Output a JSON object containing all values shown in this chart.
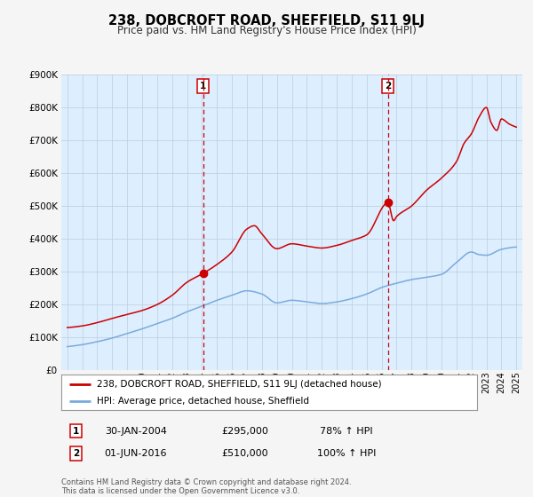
{
  "title": "238, DOBCROFT ROAD, SHEFFIELD, S11 9LJ",
  "subtitle": "Price paid vs. HM Land Registry's House Price Index (HPI)",
  "legend_line1": "238, DOBCROFT ROAD, SHEFFIELD, S11 9LJ (detached house)",
  "legend_line2": "HPI: Average price, detached house, Sheffield",
  "footer_line1": "Contains HM Land Registry data © Crown copyright and database right 2024.",
  "footer_line2": "This data is licensed under the Open Government Licence v3.0.",
  "annotation1_date": "30-JAN-2004",
  "annotation1_price": "£295,000",
  "annotation1_hpi": "78% ↑ HPI",
  "annotation2_date": "01-JUN-2016",
  "annotation2_price": "£510,000",
  "annotation2_hpi": "100% ↑ HPI",
  "sale1_x": 2004.08,
  "sale1_y": 295000,
  "sale2_x": 2016.42,
  "sale2_y": 510000,
  "vline1_x": 2004.08,
  "vline2_x": 2016.42,
  "red_line_color": "#cc0000",
  "blue_line_color": "#7aaadd",
  "fig_bg_color": "#f5f5f5",
  "plot_bg_color": "#ddeeff",
  "ylim": [
    0,
    900000
  ],
  "xlim_left": 1994.6,
  "xlim_right": 2025.4,
  "yticks": [
    0,
    100000,
    200000,
    300000,
    400000,
    500000,
    600000,
    700000,
    800000,
    900000
  ],
  "ytick_labels": [
    "£0",
    "£100K",
    "£200K",
    "£300K",
    "£400K",
    "£500K",
    "£600K",
    "£700K",
    "£800K",
    "£900K"
  ],
  "xticks": [
    1995,
    1996,
    1997,
    1998,
    1999,
    2000,
    2001,
    2002,
    2003,
    2004,
    2005,
    2006,
    2007,
    2008,
    2009,
    2010,
    2011,
    2012,
    2013,
    2014,
    2015,
    2016,
    2017,
    2018,
    2019,
    2020,
    2021,
    2022,
    2023,
    2024,
    2025
  ],
  "red_x": [
    1995,
    1996,
    1997,
    1998,
    1999,
    2000,
    2001,
    2002,
    2003,
    2004.08,
    2005,
    2006,
    2007,
    2007.5,
    2008,
    2009,
    2010,
    2011,
    2012,
    2013,
    2014,
    2015,
    2016.42,
    2016.8,
    2017,
    2018,
    2019,
    2020,
    2021,
    2021.5,
    2022,
    2022.5,
    2023,
    2023.3,
    2023.7,
    2024,
    2024.5,
    2025
  ],
  "red_y": [
    130000,
    135000,
    145000,
    158000,
    170000,
    182000,
    200000,
    228000,
    268000,
    295000,
    322000,
    360000,
    430000,
    440000,
    415000,
    370000,
    385000,
    378000,
    372000,
    380000,
    395000,
    412000,
    510000,
    455000,
    468000,
    500000,
    548000,
    585000,
    635000,
    690000,
    720000,
    770000,
    800000,
    755000,
    730000,
    765000,
    750000,
    740000
  ],
  "blue_x": [
    1995,
    1996,
    1997,
    1998,
    1999,
    2000,
    2001,
    2002,
    2003,
    2004,
    2005,
    2006,
    2007,
    2008,
    2009,
    2010,
    2011,
    2012,
    2013,
    2014,
    2015,
    2016,
    2017,
    2018,
    2019,
    2020,
    2021,
    2022,
    2022.5,
    2023,
    2024,
    2025
  ],
  "blue_y": [
    72000,
    78000,
    87000,
    98000,
    112000,
    126000,
    142000,
    158000,
    178000,
    195000,
    213000,
    228000,
    242000,
    232000,
    205000,
    213000,
    208000,
    203000,
    208000,
    218000,
    232000,
    252000,
    265000,
    276000,
    283000,
    292000,
    328000,
    360000,
    352000,
    350000,
    368000,
    375000
  ]
}
